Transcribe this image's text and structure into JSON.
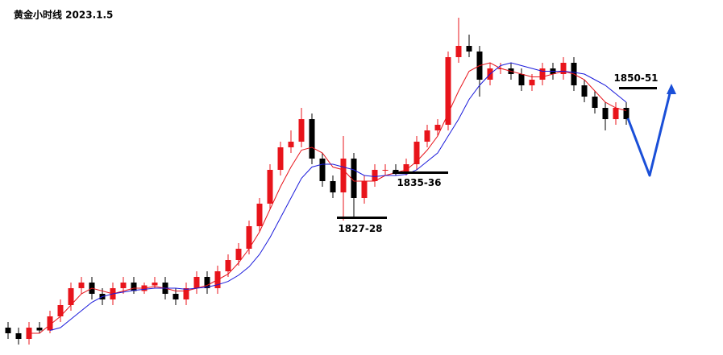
{
  "chart_data": {
    "type": "candlestick",
    "title": "黄金小时线 2023.1.5",
    "up_color": "#e8141b",
    "down_color": "#000000",
    "ylim": [
      1804,
      1864
    ],
    "open": [
      1808,
      1807,
      1806,
      1808,
      1807.5,
      1810,
      1812,
      1815,
      1816,
      1814,
      1813,
      1815,
      1816,
      1814.5,
      1815.5,
      1816,
      1814,
      1813,
      1815,
      1817,
      1815,
      1818,
      1820,
      1822,
      1826,
      1830,
      1836,
      1840,
      1841,
      1845,
      1838,
      1834,
      1832,
      1838,
      1831,
      1834,
      1836,
      1836,
      1835.5,
      1837,
      1841,
      1843,
      1844,
      1856,
      1858,
      1857,
      1852,
      1854,
      1854,
      1853,
      1851,
      1852,
      1854,
      1853,
      1855,
      1851,
      1849,
      1847,
      1845,
      1847
    ],
    "high": [
      1809,
      1808,
      1809,
      1809,
      1811,
      1813,
      1816,
      1817,
      1817,
      1815,
      1816,
      1817,
      1817,
      1816,
      1817,
      1817,
      1815,
      1816,
      1818,
      1818,
      1819,
      1821,
      1823,
      1827,
      1831,
      1837,
      1841,
      1843,
      1847,
      1846,
      1839,
      1835,
      1842,
      1839,
      1835,
      1837,
      1837,
      1837,
      1838,
      1842,
      1844,
      1845,
      1857,
      1863,
      1860,
      1858,
      1855,
      1855,
      1855,
      1854,
      1853,
      1855,
      1855,
      1856,
      1856,
      1852,
      1850,
      1848,
      1848,
      1848
    ],
    "low": [
      1806,
      1805,
      1805,
      1807,
      1807,
      1809,
      1811,
      1814,
      1813,
      1812,
      1812,
      1814,
      1814,
      1814,
      1815,
      1813,
      1812,
      1812,
      1814,
      1814,
      1814,
      1817,
      1819,
      1821,
      1825,
      1829,
      1835,
      1839,
      1840,
      1837,
      1833,
      1831,
      1827,
      1827.5,
      1830,
      1833,
      1835,
      1835,
      1835,
      1836,
      1840,
      1842,
      1843,
      1855,
      1856,
      1849,
      1851,
      1853,
      1852,
      1850,
      1850,
      1851,
      1852,
      1852,
      1850,
      1848,
      1846,
      1843,
      1844,
      1844
    ],
    "close": [
      1807,
      1806,
      1808,
      1807.5,
      1810,
      1812,
      1815,
      1816,
      1814,
      1813,
      1815,
      1816,
      1814.5,
      1815.5,
      1816,
      1814,
      1813,
      1815,
      1817,
      1815,
      1818,
      1820,
      1822,
      1826,
      1830,
      1836,
      1840,
      1841,
      1845,
      1838,
      1834,
      1832,
      1838,
      1831,
      1834,
      1836,
      1836,
      1835.5,
      1837,
      1841,
      1843,
      1844,
      1856,
      1858,
      1857,
      1852,
      1854,
      1854,
      1853,
      1851,
      1852,
      1854,
      1853,
      1855,
      1851,
      1849,
      1847,
      1845,
      1847,
      1845
    ],
    "lines": [
      {
        "color": "#e8141b",
        "values": [
          null,
          null,
          1807,
          1807,
          1808.5,
          1810,
          1812,
          1814,
          1815,
          1814.5,
          1814,
          1814.5,
          1815,
          1815,
          1815.3,
          1815,
          1814.5,
          1814.5,
          1815,
          1815.5,
          1816.5,
          1817.5,
          1819.5,
          1822,
          1825,
          1829,
          1833,
          1836.5,
          1839.5,
          1840,
          1839,
          1836.5,
          1836,
          1834,
          1834,
          1834,
          1835,
          1835.5,
          1836,
          1837.5,
          1839.5,
          1842,
          1846,
          1850,
          1853.5,
          1854.5,
          1855,
          1854,
          1853.5,
          1853,
          1852.5,
          1852.5,
          1853,
          1853.5,
          1853,
          1852,
          1850,
          1848,
          1847,
          1846.5
        ]
      },
      {
        "color": "#1a1adb",
        "values": [
          null,
          null,
          null,
          null,
          1807.5,
          1808,
          1809.5,
          1811,
          1812.5,
          1813.5,
          1814,
          1814.3,
          1814.6,
          1814.8,
          1815,
          1815,
          1815,
          1814.8,
          1815,
          1815.2,
          1815.6,
          1816.2,
          1817.3,
          1818.8,
          1821,
          1824,
          1827.5,
          1831,
          1834.5,
          1836.5,
          1837,
          1837,
          1836.5,
          1836,
          1835,
          1834.8,
          1835,
          1835,
          1835.2,
          1836,
          1837.5,
          1839,
          1842,
          1845,
          1848.5,
          1851,
          1853,
          1854.5,
          1855,
          1854.5,
          1854,
          1853.5,
          1853.5,
          1853.5,
          1853.3,
          1853,
          1852,
          1851,
          1849.5,
          1848
        ]
      }
    ],
    "annotations": [
      {
        "text": "1827-28",
        "value": 1827.5
      },
      {
        "text": "1835-36",
        "value": 1835.5
      },
      {
        "text": "1850-51",
        "value": 1850.5
      }
    ]
  }
}
